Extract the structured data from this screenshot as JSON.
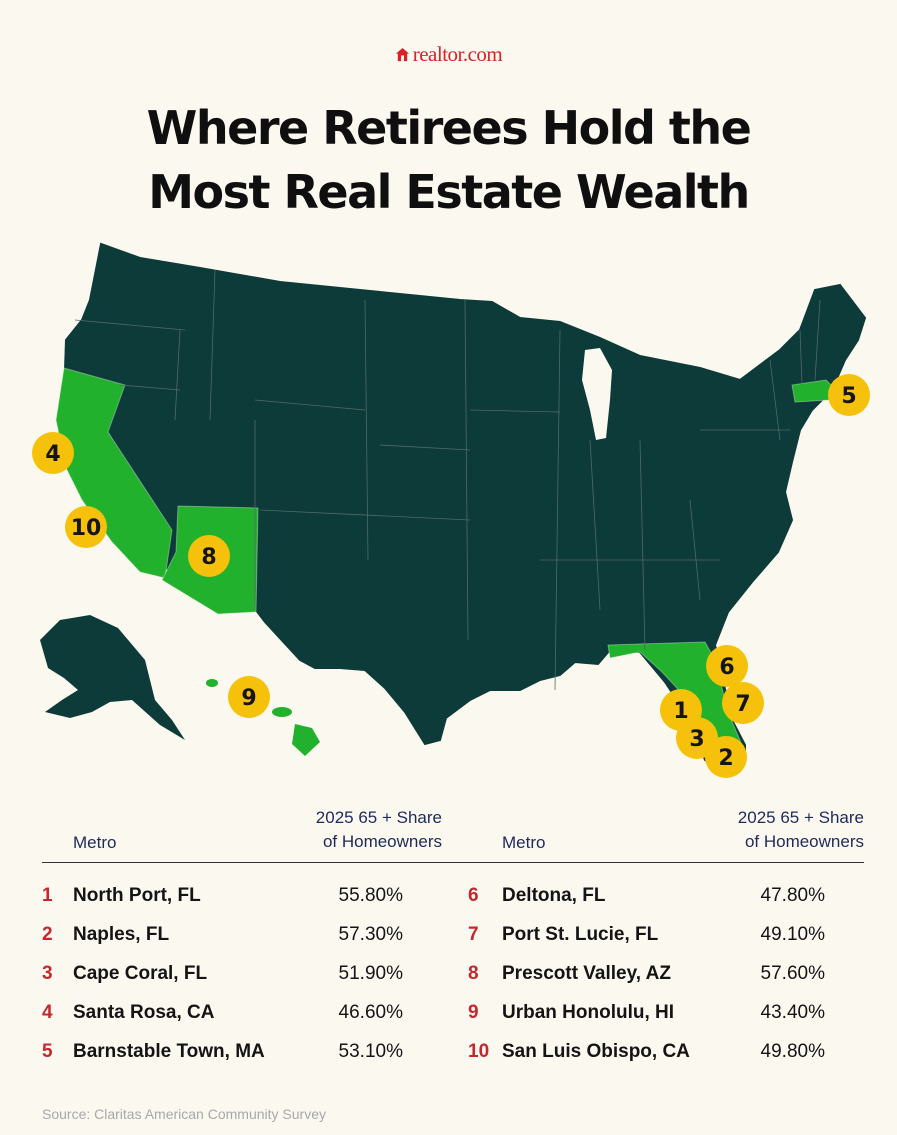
{
  "brand": {
    "logo_text": "realtor.com",
    "logo_icon": "house-icon",
    "color": "#d92228"
  },
  "title_lines": [
    "Where Retirees Hold the",
    "Most Real Estate Wealth"
  ],
  "map": {
    "highlight_color": "#22b12c",
    "base_color": "#0d3b39",
    "badge_color": "#f5c10a",
    "highlighted_states": [
      "California",
      "Arizona",
      "Florida",
      "Massachusetts",
      "Hawaii"
    ],
    "badges": [
      "4",
      "10",
      "8",
      "5",
      "9",
      "6",
      "1",
      "7",
      "3",
      "2"
    ]
  },
  "table": {
    "header_top": "2025 65 + Share",
    "header_bottom": "of Homeowners",
    "header_metro": "Metro",
    "left": [
      {
        "rank": "1",
        "metro": "North Port, FL",
        "share": "55.80%"
      },
      {
        "rank": "2",
        "metro": "Naples, FL",
        "share": "57.30%"
      },
      {
        "rank": "3",
        "metro": "Cape Coral, FL",
        "share": "51.90%"
      },
      {
        "rank": "4",
        "metro": "Santa Rosa, CA",
        "share": "46.60%"
      },
      {
        "rank": "5",
        "metro": "Barnstable Town, MA",
        "share": "53.10%"
      }
    ],
    "right": [
      {
        "rank": "6",
        "metro": "Deltona, FL",
        "share": "47.80%"
      },
      {
        "rank": "7",
        "metro": "Port St. Lucie, FL",
        "share": "49.10%"
      },
      {
        "rank": "8",
        "metro": "Prescott Valley, AZ",
        "share": "57.60%"
      },
      {
        "rank": "9",
        "metro": "Urban Honolulu, HI",
        "share": "43.40%"
      },
      {
        "rank": "10",
        "metro": "San Luis Obispo, CA",
        "share": "49.80%"
      }
    ]
  },
  "source": "Source:  Claritas American Community Survey"
}
